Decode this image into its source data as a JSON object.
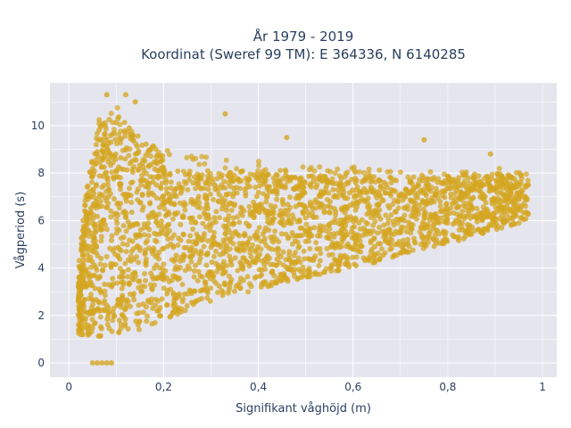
{
  "chart_data": {
    "type": "scatter",
    "title_line1": "År 1979 - 2019",
    "title_line2": "Koordinat (Sweref 99 TM): E 364336, N 6140285",
    "xlabel": "Signifikant våghöjd (m)",
    "ylabel": "Vågperiod (s)",
    "xlim": [
      -0.04,
      1.03
    ],
    "ylim": [
      -0.6,
      11.8
    ],
    "x_ticks": [
      0,
      0.2,
      0.4,
      0.6,
      0.8,
      1
    ],
    "x_tick_labels": [
      "0",
      "0,2",
      "0,4",
      "0,6",
      "0,8",
      "1"
    ],
    "y_ticks": [
      0,
      2,
      4,
      6,
      8,
      10
    ],
    "y_tick_labels": [
      "0",
      "2",
      "4",
      "6",
      "8",
      "10"
    ],
    "marker_color": "#D4A520",
    "background_color": "#E5E5EE",
    "grid": true,
    "distribution": {
      "description_points": [
        {
          "x": 0.05,
          "y": 0.0
        },
        {
          "x": 0.06,
          "y": 0.0
        },
        {
          "x": 0.07,
          "y": 0.0
        },
        {
          "x": 0.08,
          "y": 0.0
        },
        {
          "x": 0.09,
          "y": 0.0
        },
        {
          "x": 0.08,
          "y": 11.3
        },
        {
          "x": 0.12,
          "y": 11.3
        },
        {
          "x": 0.14,
          "y": 11.0
        },
        {
          "x": 0.33,
          "y": 10.5
        },
        {
          "x": 0.46,
          "y": 9.5
        },
        {
          "x": 0.75,
          "y": 9.4
        },
        {
          "x": 0.89,
          "y": 8.8
        },
        {
          "x": 0.97,
          "y": 7.5
        }
      ],
      "upper_envelope": [
        [
          0.02,
          4.3
        ],
        [
          0.04,
          8.0
        ],
        [
          0.06,
          10.2
        ],
        [
          0.1,
          10.8
        ],
        [
          0.15,
          9.8
        ],
        [
          0.2,
          9.0
        ],
        [
          0.3,
          8.7
        ],
        [
          0.4,
          8.5
        ],
        [
          0.5,
          8.4
        ],
        [
          0.6,
          8.3
        ],
        [
          0.7,
          8.2
        ],
        [
          0.8,
          8.2
        ],
        [
          0.9,
          8.3
        ],
        [
          0.97,
          8.0
        ]
      ],
      "lower_envelope": [
        [
          0.02,
          1.2
        ],
        [
          0.06,
          1.1
        ],
        [
          0.1,
          1.2
        ],
        [
          0.15,
          1.4
        ],
        [
          0.2,
          1.8
        ],
        [
          0.3,
          2.6
        ],
        [
          0.4,
          3.1
        ],
        [
          0.5,
          3.6
        ],
        [
          0.6,
          4.0
        ],
        [
          0.7,
          4.5
        ],
        [
          0.8,
          5.0
        ],
        [
          0.9,
          5.6
        ],
        [
          0.97,
          6.0
        ]
      ]
    }
  }
}
